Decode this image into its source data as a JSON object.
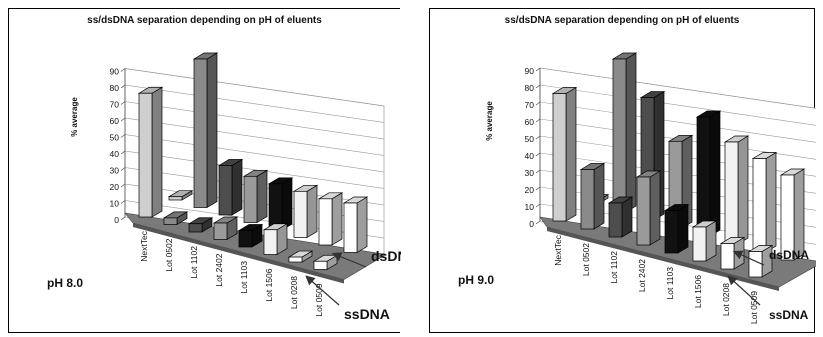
{
  "chart_data": [
    {
      "type": "bar",
      "title": "ss/dsDNA separation depending on pH of eluents",
      "ylabel": "% average",
      "ylim": [
        0,
        90
      ],
      "yticks": [
        0,
        10,
        20,
        30,
        40,
        50,
        60,
        70,
        80,
        90
      ],
      "categories": [
        "NextTec",
        "Lot 0502",
        "Lot 1102",
        "Lot 2402",
        "Lot 1103",
        "Lot 1506",
        "Lot 0208",
        "Lot 0509"
      ],
      "condition": "pH 8.0",
      "series": [
        {
          "name": "ssDNA",
          "values": [
            75,
            4,
            5,
            10,
            10,
            15,
            3,
            5
          ]
        },
        {
          "name": "dsDNA",
          "values": [
            2,
            90,
            30,
            28,
            28,
            28,
            28,
            30
          ]
        }
      ],
      "colors": [
        "#cfcfcf",
        "#8a8a8a",
        "#4d4d4d",
        "#9a9a9a",
        "#111111",
        "#f2f2f2",
        "#ffffff",
        "#ffffff"
      ]
    },
    {
      "type": "bar",
      "title": "ss/dsDNA separation depending on pH of eluents",
      "ylabel": "% average",
      "ylim": [
        0,
        90
      ],
      "yticks": [
        0,
        10,
        20,
        30,
        40,
        50,
        60,
        70,
        80,
        90
      ],
      "categories": [
        "NextTec",
        "Lot 0502",
        "Lot 1102",
        "Lot 2402",
        "Lot 1103",
        "Lot 1506",
        "Lot 0208",
        "Lot 0509"
      ],
      "condition": "pH 9.0",
      "series": [
        {
          "name": "ssDNA",
          "values": [
            75,
            35,
            20,
            40,
            25,
            20,
            15,
            15
          ]
        },
        {
          "name": "dsDNA",
          "values": [
            2,
            90,
            72,
            51,
            70,
            60,
            55,
            50
          ]
        }
      ],
      "colors": [
        "#cfcfcf",
        "#8a8a8a",
        "#4d4d4d",
        "#9a9a9a",
        "#111111",
        "#f2f2f2",
        "#ffffff",
        "#ffffff"
      ]
    }
  ]
}
